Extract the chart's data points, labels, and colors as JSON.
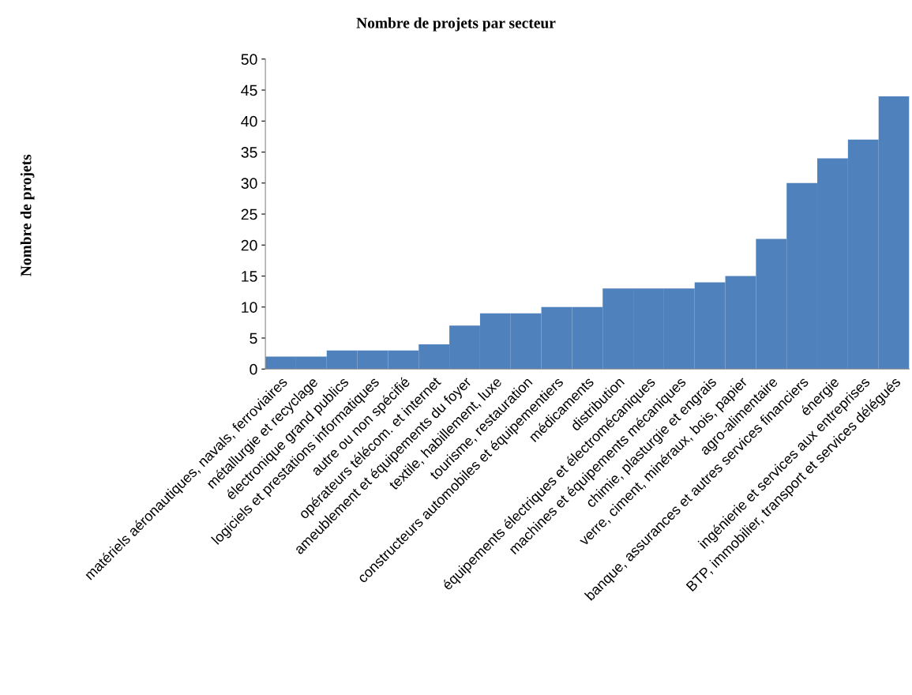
{
  "chart_data": {
    "type": "bar",
    "title": "Nombre de projets par secteur",
    "ylabel": "Nombre de projets",
    "categories": [
      "matériels aéronautiques, navals, ferroviaires",
      "métallurgie et recyclage",
      "électronique grand publics",
      "logiciels et prestations informatiques",
      "autre ou non spécifié",
      "opérateurs télécom. et internet",
      "ameublement et équipements du foyer",
      "textile, habillement, luxe",
      "tourisme, restauration",
      "constructeurs automobiles et équipementiers",
      "médicaments",
      "distribution",
      "équipements électriques et électromécaniques",
      "machines et équipements mécaniques",
      "chimie, plasturgie et engrais",
      "verre, ciment, minéraux, bois, papier",
      "agro-alimentaire",
      "banque, assurances et autres services financiers",
      "énergie",
      "ingénierie et services aux entreprises",
      "BTP, immobilier, transport et services délégués"
    ],
    "values": [
      2,
      2,
      3,
      3,
      3,
      4,
      7,
      9,
      9,
      10,
      10,
      13,
      13,
      13,
      14,
      15,
      21,
      30,
      34,
      37,
      44
    ],
    "color": "#4f81bd",
    "ylim": [
      0,
      50
    ],
    "yticks": [
      0,
      5,
      10,
      15,
      20,
      25,
      30,
      35,
      40,
      45,
      50
    ],
    "grid": false,
    "legend": false
  }
}
